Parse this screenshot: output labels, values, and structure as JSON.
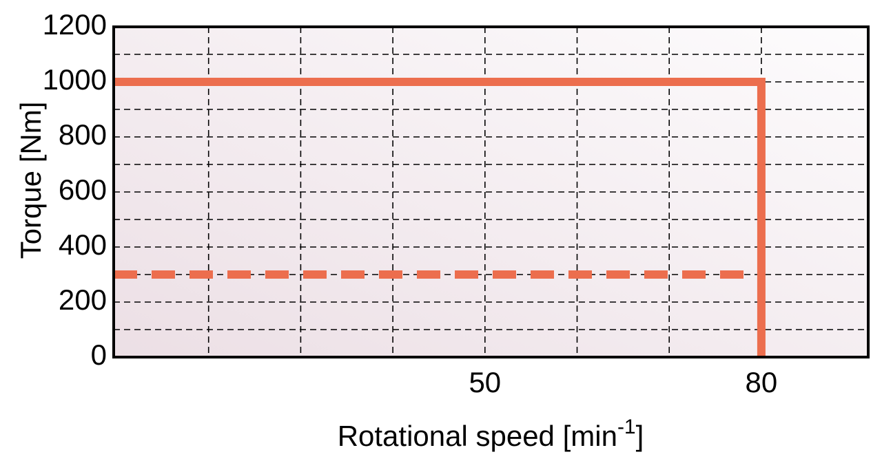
{
  "chart_data": {
    "type": "line",
    "y_label": "Torque [Nm]",
    "x_label": {
      "text": "Rotational speed [min",
      "superscript": "-1",
      "end": "]"
    },
    "xlim": [
      9.7,
      91.6
    ],
    "xticks": [
      50,
      80
    ],
    "x_minor_ticks": [
      20,
      30,
      40,
      60,
      70
    ],
    "ylim": [
      0,
      1200
    ],
    "yticks": [
      0,
      200,
      400,
      600,
      800,
      1000,
      1200
    ],
    "y_minor_ticks": [
      100,
      300,
      500,
      700,
      900,
      1100
    ],
    "grid": true,
    "series": [
      {
        "color": "#ec6e4e",
        "style": "solid",
        "x": [
          9.7,
          80,
          80
        ],
        "values": [
          1000,
          1000,
          0
        ]
      },
      {
        "color": "#ec6e4e",
        "style": "dashed",
        "x": [
          9.7,
          80
        ],
        "values": [
          300,
          300
        ]
      }
    ]
  }
}
